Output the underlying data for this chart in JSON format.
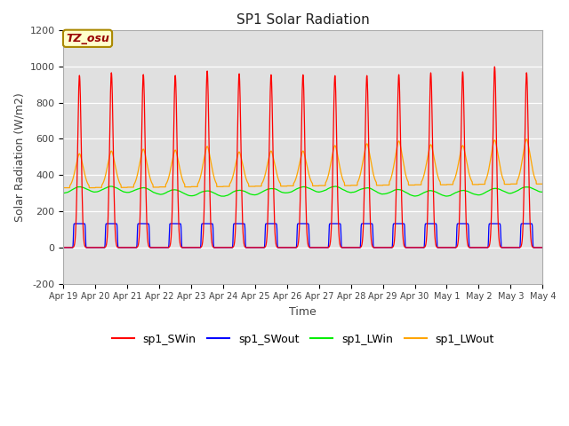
{
  "title": "SP1 Solar Radiation",
  "xlabel": "Time",
  "ylabel": "Solar Radiation (W/m2)",
  "ylim": [
    -200,
    1200
  ],
  "ytick_values": [
    -200,
    0,
    200,
    400,
    600,
    800,
    1000,
    1200
  ],
  "xtick_labels": [
    "Apr 19",
    "Apr 20",
    "Apr 21",
    "Apr 22",
    "Apr 23",
    "Apr 24",
    "Apr 25",
    "Apr 26",
    "Apr 27",
    "Apr 28",
    "Apr 29",
    "Apr 30",
    "May 1",
    "May 2",
    "May 3",
    "May 4"
  ],
  "background_color": "#ffffff",
  "plot_bg_color": "#e0e0e0",
  "grid_color": "#ffffff",
  "colors": {
    "sp1_SWin": "#ff0000",
    "sp1_SWout": "#0000ff",
    "sp1_LWin": "#00ee00",
    "sp1_LWout": "#ffa500"
  },
  "annotation_text": "TZ_osu",
  "annotation_bg": "#ffffcc",
  "annotation_border": "#aa8800",
  "legend_entries": [
    "sp1_SWin",
    "sp1_SWout",
    "sp1_LWin",
    "sp1_LWout"
  ],
  "num_days": 15,
  "pts_per_day": 144
}
